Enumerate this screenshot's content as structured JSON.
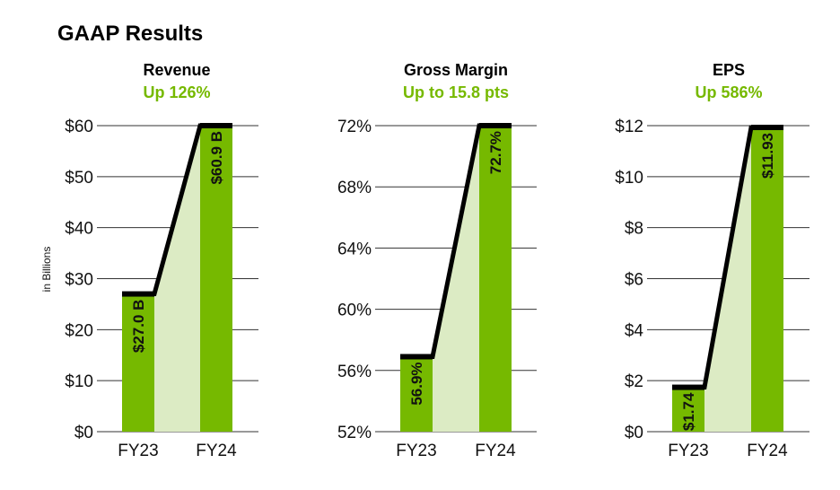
{
  "page_title": "GAAP Results",
  "colors": {
    "bar": "#76b900",
    "fill": "#dcebc4",
    "line": "#000000",
    "accent_text": "#76b900",
    "grid": "#333333"
  },
  "chart_data": [
    {
      "type": "bar",
      "title": "Revenue",
      "subtitle": "Up 126%",
      "ylabel": "in Billions",
      "categories": [
        "FY23",
        "FY24"
      ],
      "values": [
        27.0,
        60.9
      ],
      "data_labels": [
        "$27.0 B",
        "$60.9 B"
      ],
      "ylim": [
        0,
        60
      ],
      "yticks": [
        0,
        10,
        20,
        30,
        40,
        50,
        60
      ],
      "ytick_labels": [
        "$0",
        "$10",
        "$20",
        "$30",
        "$40",
        "$50",
        "$60"
      ],
      "grid": true
    },
    {
      "type": "bar",
      "title": "Gross Margin",
      "subtitle": "Up to 15.8 pts",
      "ylabel": "",
      "categories": [
        "FY23",
        "FY24"
      ],
      "values": [
        56.9,
        72.7
      ],
      "data_labels": [
        "56.9%",
        "72.7%"
      ],
      "ylim": [
        52,
        72
      ],
      "yticks": [
        52,
        56,
        60,
        64,
        68,
        72
      ],
      "ytick_labels": [
        "52%",
        "56%",
        "60%",
        "64%",
        "68%",
        "72%"
      ],
      "grid": true
    },
    {
      "type": "bar",
      "title": "EPS",
      "subtitle": "Up 586%",
      "ylabel": "",
      "categories": [
        "FY23",
        "FY24"
      ],
      "values": [
        1.74,
        11.93
      ],
      "data_labels": [
        "$1.74",
        "$11.93"
      ],
      "ylim": [
        0,
        12
      ],
      "yticks": [
        0,
        2,
        4,
        6,
        8,
        10,
        12
      ],
      "ytick_labels": [
        "$0",
        "$2",
        "$4",
        "$6",
        "$8",
        "$10",
        "$12"
      ],
      "grid": true
    }
  ]
}
